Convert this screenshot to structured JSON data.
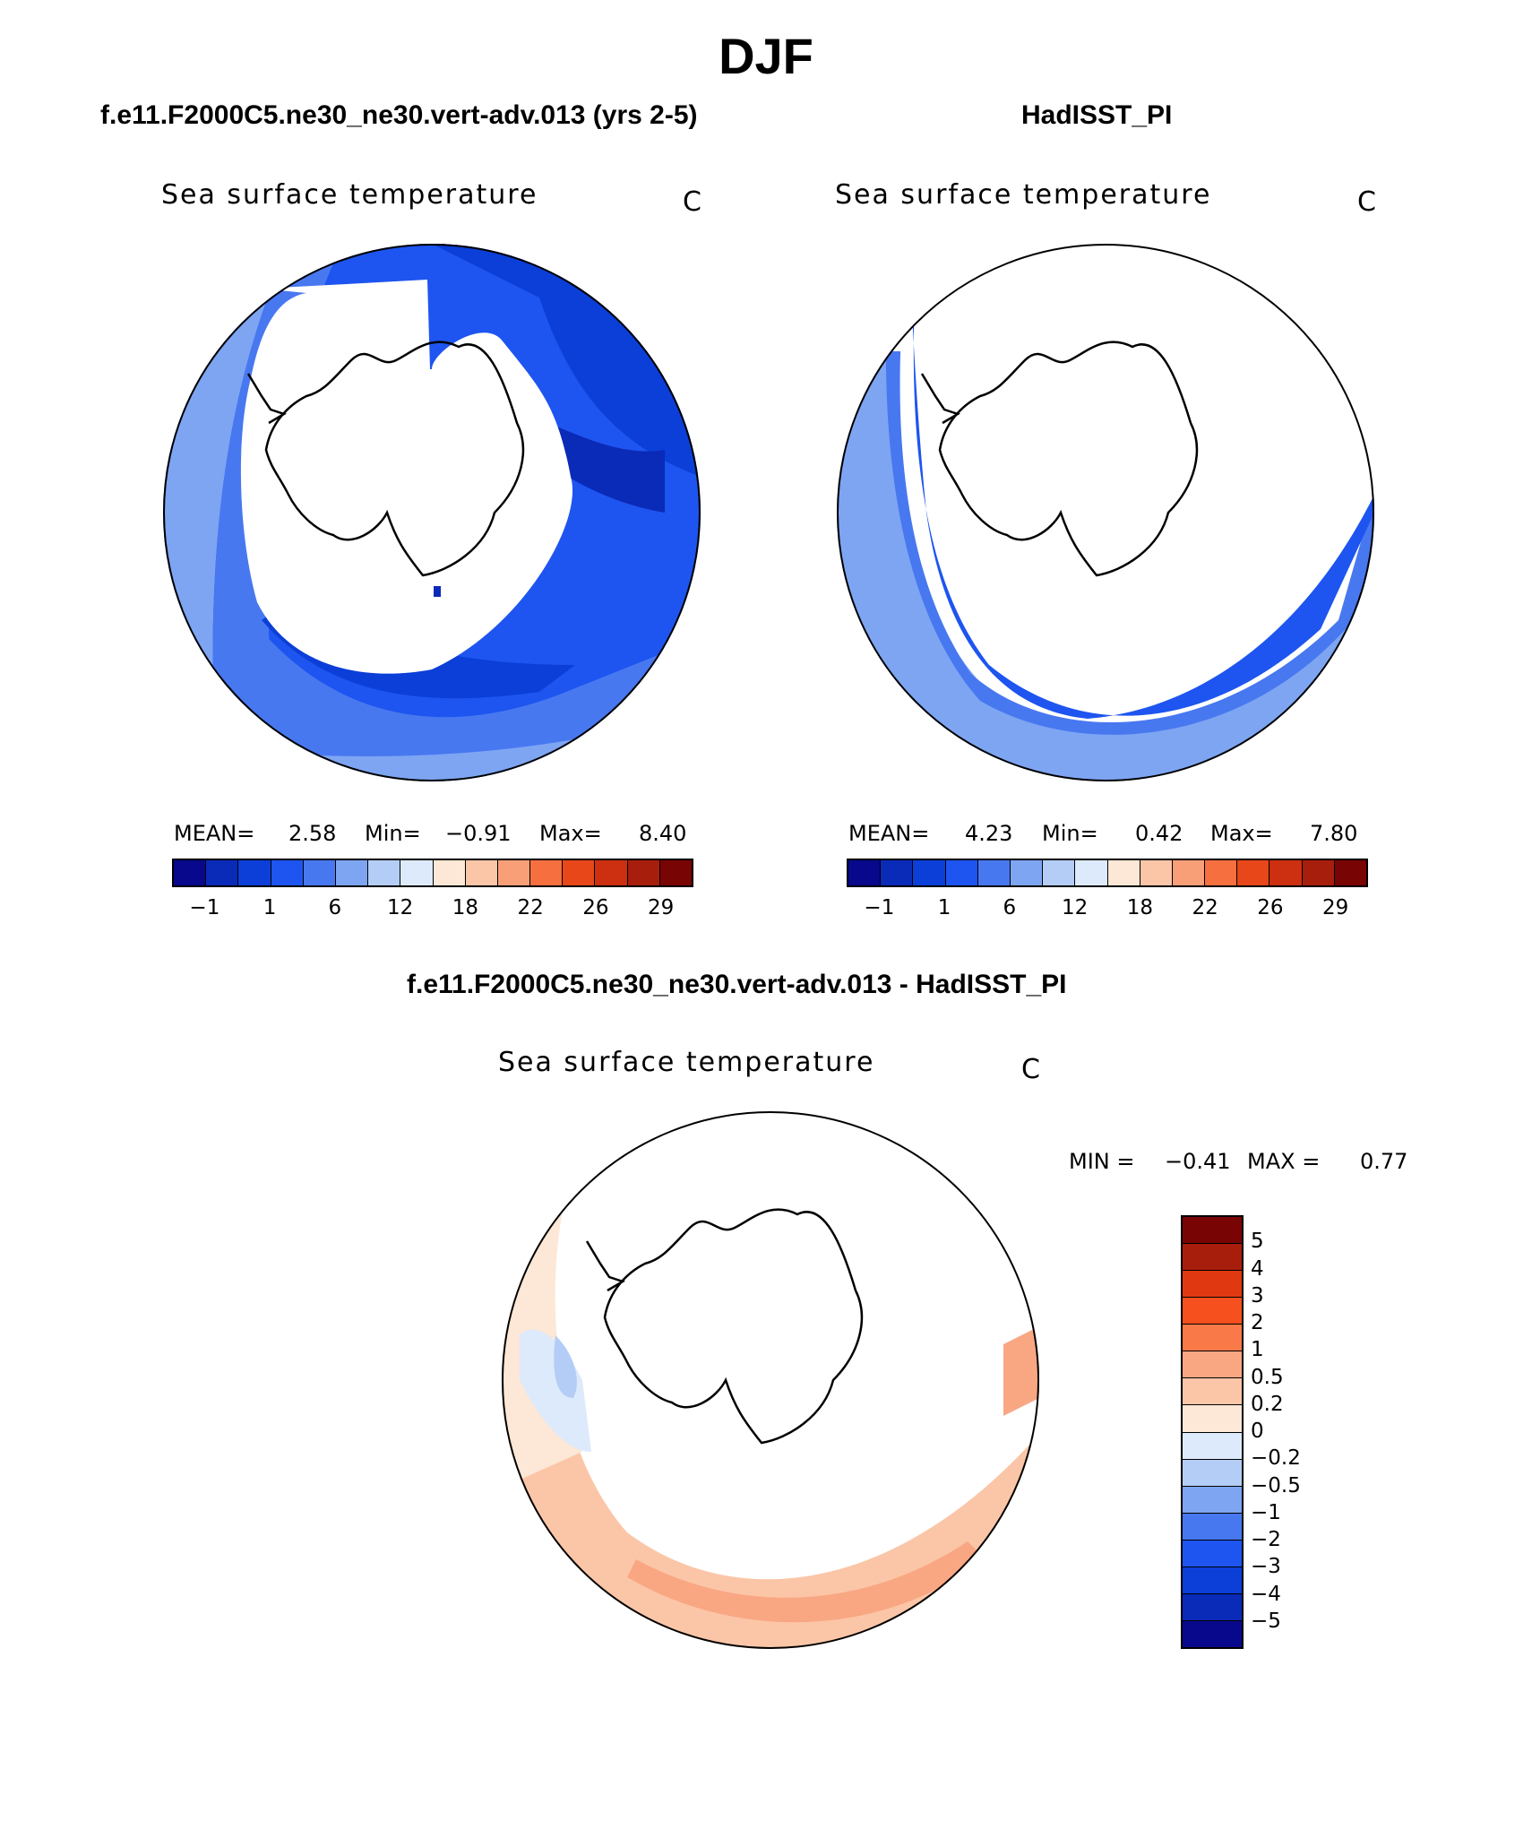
{
  "season_title": "DJF",
  "palette_abs": [
    "#08088c",
    "#0a2ab8",
    "#0b3fd8",
    "#1e55f0",
    "#4878f0",
    "#7ea5f2",
    "#b4cdf6",
    "#ddeafc",
    "#fde7d6",
    "#fbc6a7",
    "#f99f78",
    "#f5703e",
    "#e8471a",
    "#cc3010",
    "#a81e0c",
    "#780404"
  ],
  "palette_diff": [
    "#780404",
    "#a81e0c",
    "#e03810",
    "#f5501e",
    "#f97a48",
    "#f9a783",
    "#fbc6a7",
    "#fde7d6",
    "#ddeafc",
    "#b4cdf6",
    "#7ea5f2",
    "#4878f0",
    "#1e55f0",
    "#0b3fd8",
    "#0a2ab8",
    "#08088c"
  ],
  "left": {
    "title": "f.e11.F2000C5.ne30_ne30.vert-adv.013 (yrs 2-5)",
    "subtitle": "Sea surface temperature",
    "units": "C",
    "mean_label": "MEAN=",
    "mean": "2.58",
    "min_label": "Min=",
    "min": "−0.91",
    "max_label": "Max=",
    "max": "8.40",
    "ticks": [
      "−1",
      "1",
      "6",
      "12",
      "18",
      "22",
      "26",
      "29"
    ]
  },
  "right": {
    "title": "HadISST_PI",
    "subtitle": "Sea surface temperature",
    "units": "C",
    "mean_label": "MEAN=",
    "mean": "4.23",
    "min_label": "Min=",
    "min": "0.42",
    "max_label": "Max=",
    "max": "7.80",
    "ticks": [
      "−1",
      "1",
      "6",
      "12",
      "18",
      "22",
      "26",
      "29"
    ]
  },
  "diff": {
    "title": "f.e11.F2000C5.ne30_ne30.vert-adv.013 - HadISST_PI",
    "subtitle": "Sea surface temperature",
    "units": "C",
    "min_label": "MIN =",
    "min": "−0.41",
    "max_label": "MAX =",
    "max": "0.77",
    "ticks": [
      "5",
      "4",
      "3",
      "2",
      "1",
      "0.5",
      "0.2",
      "0",
      "−0.2",
      "−0.5",
      "−1",
      "−2",
      "−3",
      "−4",
      "−5"
    ]
  }
}
